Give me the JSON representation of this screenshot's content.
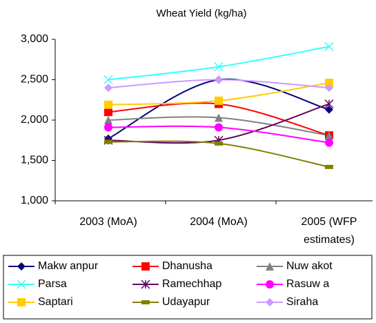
{
  "chart_data": {
    "type": "line",
    "title": "Wheat Yield (kg/ha)",
    "categories": [
      "2003 (MoA)",
      "2004 (MoA)",
      "2005 (WFP estimates)"
    ],
    "ylim": [
      1000,
      3000
    ],
    "yticks": [
      {
        "value": 1000,
        "label": "1,000"
      },
      {
        "value": 1500,
        "label": "1,500"
      },
      {
        "value": 2000,
        "label": "2,000"
      },
      {
        "value": 2500,
        "label": "2,500"
      },
      {
        "value": 3000,
        "label": "3,000"
      }
    ],
    "grid": false,
    "smooth": true,
    "legend": "bottom",
    "series": [
      {
        "name": "Makw anpur",
        "color": "#000080",
        "marker": "diamond",
        "values": [
          1770,
          2500,
          2130
        ]
      },
      {
        "name": "Dhanusha",
        "color": "#ff0000",
        "marker": "square",
        "values": [
          2100,
          2200,
          1810
        ]
      },
      {
        "name": "Nuw akot",
        "color": "#808080",
        "marker": "triangle",
        "values": [
          2000,
          2030,
          1810
        ]
      },
      {
        "name": "Parsa",
        "color": "#33ffff",
        "marker": "x",
        "values": [
          2500,
          2660,
          2910
        ]
      },
      {
        "name": "Ramechhap",
        "color": "#660066",
        "marker": "star",
        "values": [
          1750,
          1750,
          2200
        ]
      },
      {
        "name": "Rasuw a",
        "color": "#ff00ff",
        "marker": "circle",
        "values": [
          1910,
          1910,
          1720
        ]
      },
      {
        "name": "Saptari",
        "color": "#ffcc00",
        "marker": "square",
        "values": [
          2190,
          2240,
          2460
        ]
      },
      {
        "name": "Udayapur",
        "color": "#808000",
        "marker": "dash",
        "values": [
          1730,
          1710,
          1420
        ]
      },
      {
        "name": "Siraha",
        "color": "#cc99ff",
        "marker": "diamond",
        "values": [
          2400,
          2500,
          2400
        ]
      }
    ]
  }
}
